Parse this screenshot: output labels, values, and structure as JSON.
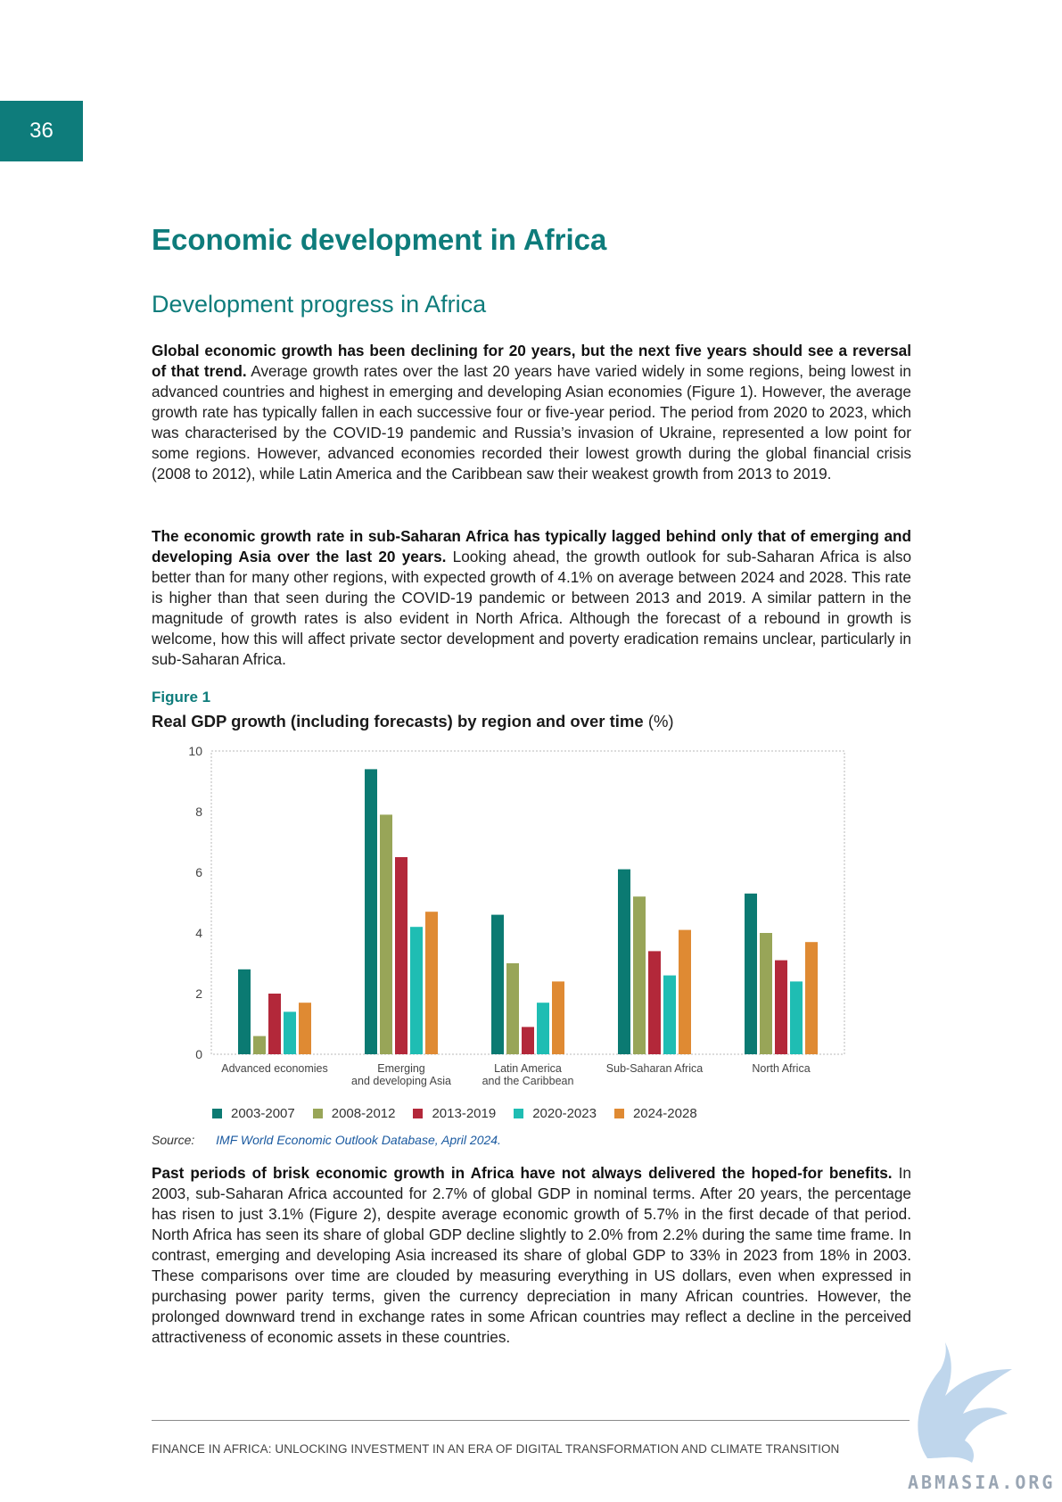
{
  "page_number": "36",
  "heading": "Economic development in Africa",
  "subheading": "Development progress in Africa",
  "para1": {
    "bold": "Global economic growth has been declining for 20 years, but the next five years should see a reversal of that trend.",
    "text": " Average growth rates over the last 20 years have varied widely in some regions, being lowest in advanced countries and highest in emerging and developing Asian economies (Figure 1). However, the average growth rate has typically fallen in each successive four or five-year period. The period from 2020 to 2023, which was characterised by the COVID-19 pandemic and Russia’s invasion of Ukraine, represented a low point for some regions. However, advanced economies recorded their lowest growth during the global financial crisis (2008 to 2012), while Latin America and the Caribbean saw their weakest growth from 2013 to 2019."
  },
  "para2": {
    "bold": "The economic growth rate in sub-Saharan Africa has typically lagged behind only that of emerging and developing Asia over the last 20 years.",
    "text": " Looking ahead, the growth outlook for sub-Saharan Africa is also better than for many other regions, with expected growth of 4.1% on average between 2024 and 2028. This rate is higher than that seen during the COVID-19 pandemic or between 2013 and 2019. A similar pattern in the magnitude of growth rates is also evident in North Africa. Although the forecast of a rebound in growth is welcome, how this will affect private sector development and poverty eradication remains unclear, particularly in sub-Saharan Africa."
  },
  "figure": {
    "label": "Figure 1",
    "title": "Real GDP growth (including forecasts) by region and over time",
    "unit": "(%)"
  },
  "source": {
    "label": "Source:",
    "text": "IMF World Economic Outlook Database, April 2024."
  },
  "para3": {
    "bold": "Past periods of brisk economic growth in Africa have not always delivered the hoped-for benefits.",
    "text": " In 2003, sub-Saharan Africa accounted for 2.7% of global GDP in nominal terms. After 20 years, the percentage has risen to just 3.1% (Figure 2), despite average economic growth of 5.7% in the first decade of that period. North Africa has seen its share of global GDP decline slightly to 2.0% from 2.2% during the same time frame. In contrast, emerging and developing Asia increased its share of global GDP to 33% in 2023 from 18% in 2003. These comparisons over time are clouded by measuring everything in US dollars, even when expressed in purchasing power parity terms, given the currency depreciation in many African countries. However, the prolonged downward trend in exchange rates in some African countries may reflect a decline in the perceived attractiveness of economic assets in these countries."
  },
  "footer": "FINANCE IN AFRICA: UNLOCKING INVESTMENT IN AN ERA OF DIGITAL TRANSFORMATION AND CLIMATE TRANSITION",
  "watermark": "ABMASIA.ORG",
  "colors": {
    "accent": "#0e7c7b",
    "link": "#1b5aa0"
  },
  "chart_data": {
    "type": "bar",
    "categories": [
      [
        "Advanced economies"
      ],
      [
        "Emerging",
        "and developing Asia"
      ],
      [
        "Latin America",
        "and the Caribbean"
      ],
      [
        "Sub-Saharan Africa"
      ],
      [
        "North Africa"
      ]
    ],
    "series": [
      {
        "name": "2003-2007",
        "color": "#0b7a72",
        "values": [
          2.8,
          9.4,
          4.6,
          6.1,
          5.3
        ]
      },
      {
        "name": "2008-2012",
        "color": "#98a558",
        "values": [
          0.6,
          7.9,
          3.0,
          5.2,
          4.0
        ]
      },
      {
        "name": "2013-2019",
        "color": "#b3283a",
        "values": [
          2.0,
          6.5,
          0.9,
          3.4,
          3.1
        ]
      },
      {
        "name": "2020-2023",
        "color": "#1fbdb3",
        "values": [
          1.4,
          4.2,
          1.7,
          2.6,
          2.4
        ]
      },
      {
        "name": "2024-2028",
        "color": "#df8a33",
        "values": [
          1.7,
          4.7,
          2.4,
          4.1,
          3.7
        ]
      }
    ],
    "yticks": [
      "0",
      "2",
      "4",
      "6",
      "8",
      "10"
    ],
    "ylim": [
      0,
      10
    ],
    "grid": false,
    "legend_position": "bottom-left"
  }
}
